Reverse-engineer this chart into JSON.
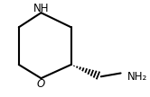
{
  "bg_color": "#ffffff",
  "line_color": "#000000",
  "text_color": "#000000",
  "figsize": [
    1.66,
    1.08
  ],
  "dpi": 100,
  "NH_text": "NH",
  "O_text": "O",
  "NH2_text": "NH₂",
  "fontsize": 8.5
}
